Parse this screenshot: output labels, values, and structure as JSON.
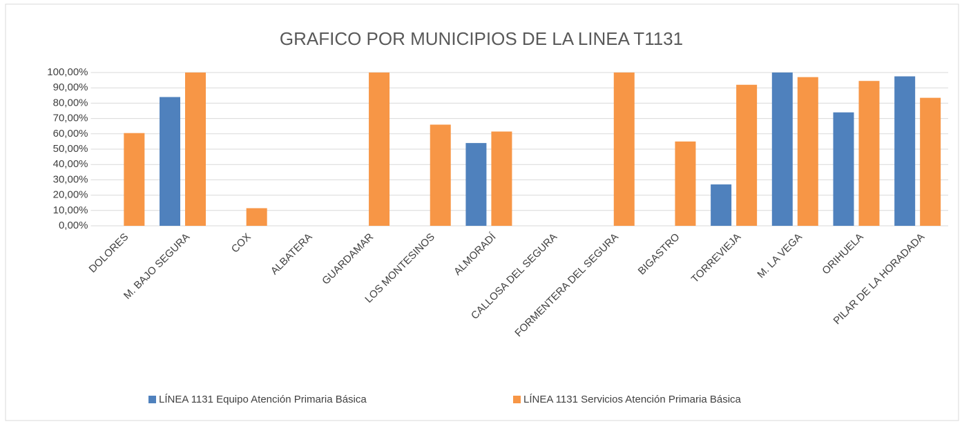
{
  "chart_data": {
    "type": "bar",
    "title": "GRAFICO POR MUNICIPIOS DE LA LINEA T1131",
    "categories": [
      "DOLORES",
      "M. BAJO SEGURA",
      "COX",
      "ALBATERA",
      "GUARDAMAR",
      "LOS MONTESINOS",
      "ALMORADÍ",
      "CALLOSA DEL SEGURA",
      "FORMENTERA DEL SEGURA",
      "BIGASTRO",
      "TORREVIEJA",
      "M. LA VEGA",
      "ORIHUELA",
      "PILAR DE LA HORADADA"
    ],
    "series": [
      {
        "name": "LÍNEA 1131 Equipo Atención Primaria Básica",
        "color": "#4f81bd",
        "values": [
          0,
          84,
          0,
          0,
          0,
          0,
          54,
          0,
          0,
          0,
          27,
          100,
          74,
          97.5
        ]
      },
      {
        "name": "LÍNEA 1131 Servicios Atención Primaria Básica",
        "color": "#f79646",
        "values": [
          60.5,
          100,
          11.5,
          0,
          100,
          66,
          61.5,
          0,
          100,
          55,
          92,
          97,
          94.5,
          83.5
        ]
      }
    ],
    "ylim": [
      0,
      100
    ],
    "yticks": [
      {
        "value": 0,
        "label": "0,00%"
      },
      {
        "value": 10,
        "label": "10,00%"
      },
      {
        "value": 20,
        "label": "20,00%"
      },
      {
        "value": 30,
        "label": "30,00%"
      },
      {
        "value": 40,
        "label": "40,00%"
      },
      {
        "value": 50,
        "label": "50,00%"
      },
      {
        "value": 60,
        "label": "60,00%"
      },
      {
        "value": 70,
        "label": "70,00%"
      },
      {
        "value": 80,
        "label": "80,00%"
      },
      {
        "value": 90,
        "label": "90,00%"
      },
      {
        "value": 100,
        "label": "100,00%"
      }
    ],
    "grid": true,
    "legend": "bottom"
  }
}
